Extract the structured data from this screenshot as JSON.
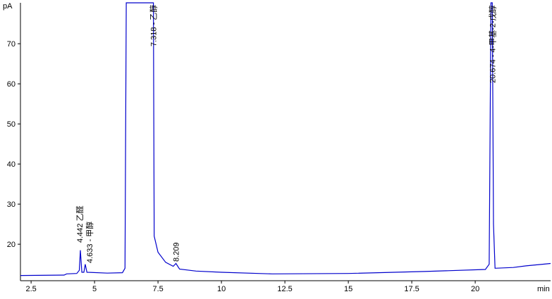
{
  "chart_data": {
    "type": "line",
    "y_unit": "pA",
    "x_unit": "min",
    "x": [
      2.08,
      3.8,
      3.9,
      4.3,
      4.4,
      4.442,
      4.5,
      4.58,
      4.633,
      4.7,
      5.5,
      6.1,
      6.2,
      6.25,
      7.25,
      7.318,
      7.35,
      7.5,
      7.8,
      8.1,
      8.209,
      8.35,
      9,
      10,
      12,
      15,
      18,
      20.4,
      20.55,
      20.62,
      20.674,
      20.72,
      20.78,
      21.5,
      22,
      22.97
    ],
    "series": [
      {
        "color": "#0000cc",
        "values": [
          12.2,
          12.3,
          12.6,
          12.7,
          13.5,
          18.5,
          13,
          13,
          15,
          13,
          12.8,
          12.9,
          14,
          80.2,
          80.2,
          80.2,
          22,
          18,
          15.5,
          14.5,
          15.2,
          13.8,
          13.3,
          13.0,
          12.6,
          12.7,
          13.2,
          13.7,
          15,
          80.2,
          80.2,
          25,
          14,
          14.2,
          14.6,
          15.2
        ]
      }
    ],
    "annotations": [
      {
        "x": 4.442,
        "label": "4.442 乙醛"
      },
      {
        "x": 4.633,
        "label": "4.633 - 甲醇"
      },
      {
        "x": 7.318,
        "label": "7.318 - 乙醇"
      },
      {
        "x": 8.209,
        "label": "8.209"
      },
      {
        "x": 20.674,
        "label": "20.674 - 4-甲基-2-戊醇"
      }
    ],
    "xlim": [
      2.08,
      22.97
    ],
    "ylim": [
      10.9,
      80.2
    ],
    "xticks": [
      2.5,
      5,
      7.5,
      10,
      12.5,
      15,
      17.5,
      20
    ],
    "yticks": [
      20,
      30,
      40,
      50,
      60,
      70
    ]
  }
}
